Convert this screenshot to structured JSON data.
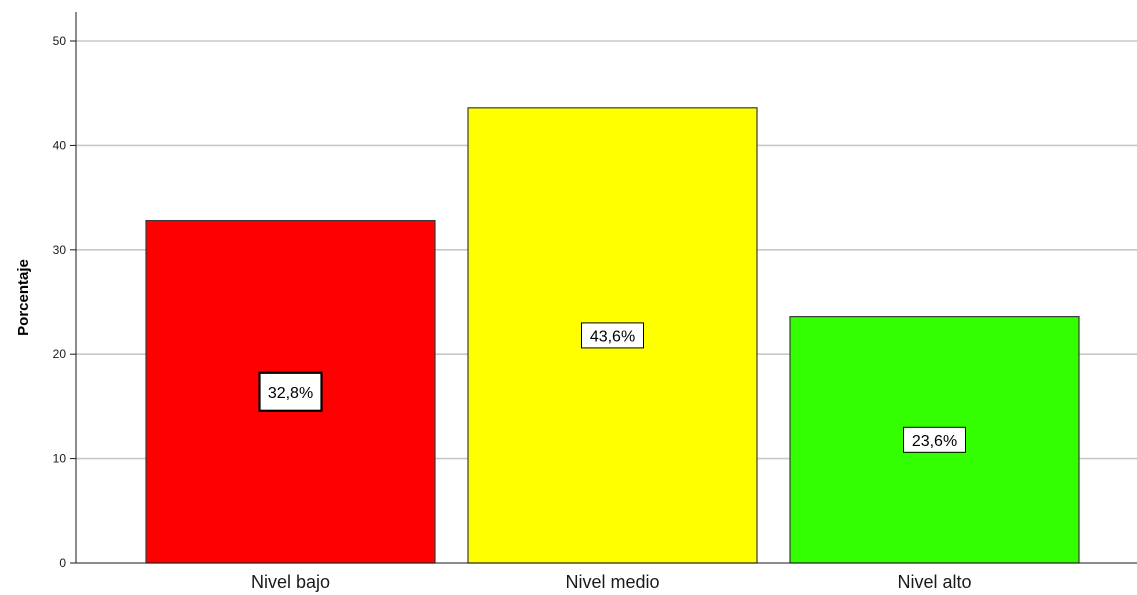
{
  "chart_data": {
    "type": "bar",
    "categories": [
      "Nivel bajo",
      "Nivel medio",
      "Nivel alto"
    ],
    "values": [
      32.8,
      43.6,
      23.6
    ],
    "data_labels": [
      "32,8%",
      "43,6%",
      "23,6%"
    ],
    "colors": [
      "#ff0000",
      "#ffff00",
      "#33ff00"
    ],
    "ylabel": "Porcentaje",
    "xlabel": "",
    "ylim": [
      0,
      52
    ],
    "yticks": [
      0,
      10,
      20,
      30,
      40,
      50
    ],
    "ytick_labels": [
      "0",
      "10",
      "20",
      "30",
      "40",
      "50"
    ],
    "grid": true,
    "legend": false
  }
}
